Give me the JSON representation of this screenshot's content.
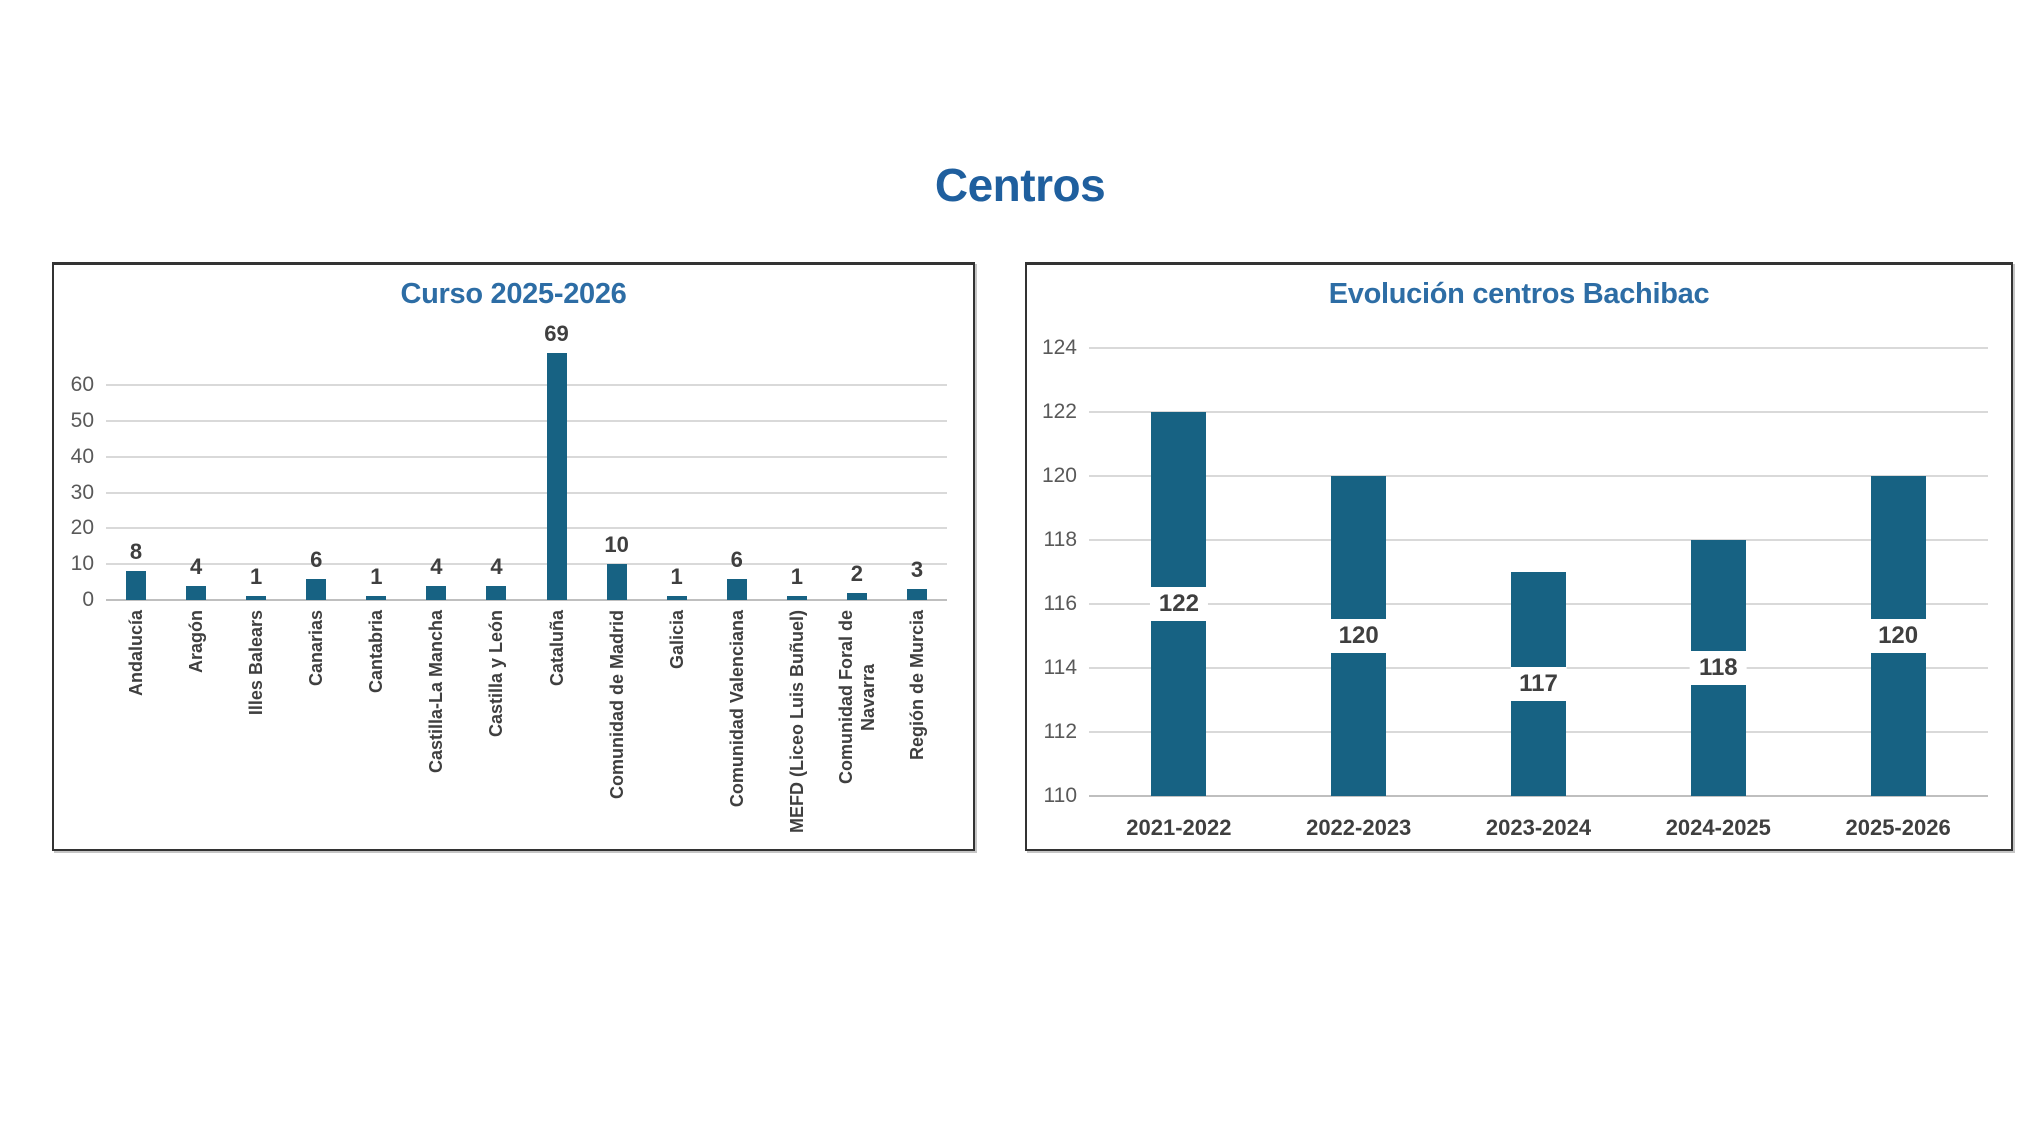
{
  "page_title": "Centros",
  "colors": {
    "page_title": "#1F5F9E",
    "chart_title": "#2D6DA5",
    "bar_fill": "#176283",
    "gridline": "#D9D9D9",
    "axis_line": "#BFBFBF",
    "tick_label": "#595959",
    "data_label": "#3F3F3F",
    "data_label_box_bg": "#FFFFFF",
    "panel_border": "#333333"
  },
  "chart_data": [
    {
      "type": "bar",
      "title": "Curso 2025-2026",
      "categories": [
        "Andalucía",
        "Aragón",
        "Illes Balears",
        "Canarias",
        "Cantabria",
        "Castilla-La Mancha",
        "Castilla y León",
        "Cataluña",
        "Comunidad de Madrid",
        "Galicia",
        "Comunidad Valenciana",
        "MEFD (Liceo Luis Buñuel)",
        "Comunidad Foral de\nNavarra",
        "Región de Murcia"
      ],
      "values": [
        8,
        4,
        1,
        6,
        1,
        4,
        4,
        69,
        10,
        1,
        6,
        1,
        2,
        3
      ],
      "xlabel": "",
      "ylabel": "",
      "ylim": [
        0,
        69
      ],
      "yticks": [
        0,
        10,
        20,
        30,
        40,
        50,
        60
      ],
      "grid": true,
      "legend": false,
      "data_labels": "outside-end",
      "category_label_style": "rotated-90"
    },
    {
      "type": "bar",
      "title": "Evolución centros Bachibac",
      "categories": [
        "2021-2022",
        "2022-2023",
        "2023-2024",
        "2024-2025",
        "2025-2026"
      ],
      "values": [
        122,
        120,
        117,
        118,
        120
      ],
      "xlabel": "",
      "ylabel": "",
      "ylim": [
        110,
        124
      ],
      "yticks": [
        110,
        112,
        114,
        116,
        118,
        120,
        122,
        124
      ],
      "grid": true,
      "legend": false,
      "data_labels": "inside-center-boxed",
      "category_label_style": "horizontal"
    }
  ]
}
